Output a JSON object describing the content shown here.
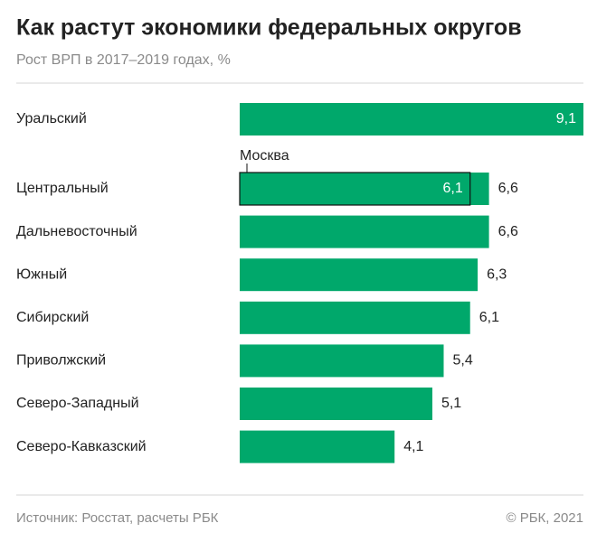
{
  "chart_data": {
    "type": "bar",
    "title": "Как растут экономики федеральных округов",
    "subtitle": "Рост ВРП в 2017–2019 годах, %",
    "categories": [
      "Уральский",
      "Центральный",
      "Дальневосточный",
      "Южный",
      "Сибирский",
      "Приволжский",
      "Северо-Западный",
      "Северо-Кавказский"
    ],
    "values": [
      9.1,
      6.6,
      6.6,
      6.3,
      6.1,
      5.4,
      5.1,
      4.1
    ],
    "value_labels": [
      "9,1",
      "6,6",
      "6,6",
      "6,3",
      "6,1",
      "5,4",
      "5,1",
      "4,1"
    ],
    "color": "#00a86b",
    "overlay": {
      "name": "Москва",
      "category": "Центральный",
      "value": 6.1,
      "value_label": "6,1"
    },
    "source": "Источник: Росстат, расчеты РБК",
    "copyright": "© РБК, 2021"
  }
}
